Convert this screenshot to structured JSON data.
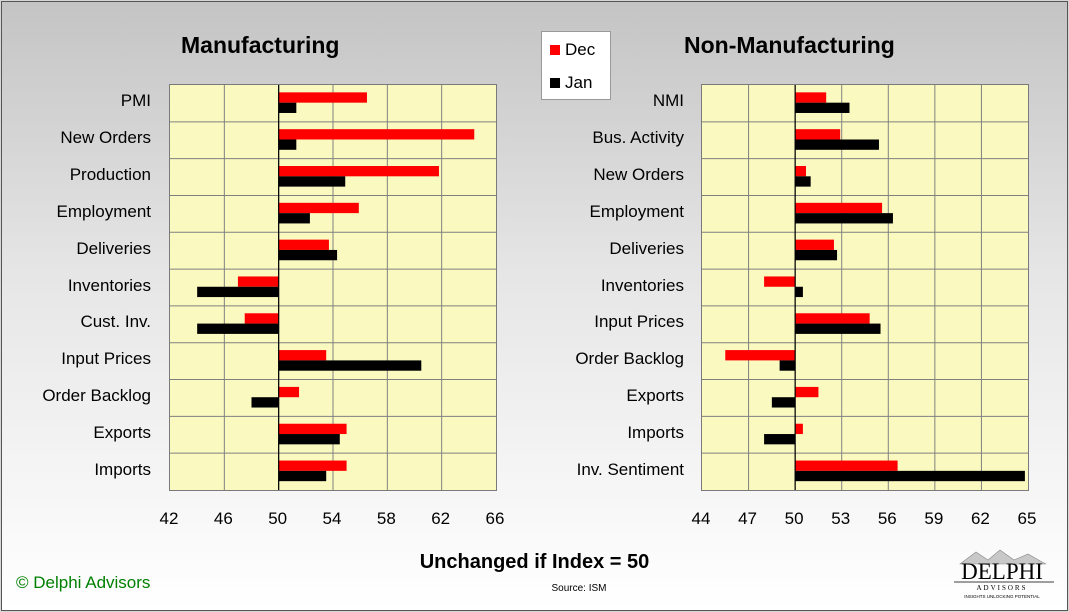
{
  "copyright": "© Delphi Advisors",
  "footer": "Unchanged if Index = 50",
  "source": "Source: ISM",
  "logo": {
    "name": "DELPHI",
    "sub": "ADVISORS",
    "tagline": "INSIGHTS UNLOCKING POTENTIAL"
  },
  "colors": {
    "dec": "#ff0000",
    "jan": "#000000",
    "plot_bg": "#fafac0",
    "grid": "#808080"
  },
  "legend": [
    {
      "name": "Dec",
      "color": "#ff0000"
    },
    {
      "name": "Jan",
      "color": "#000000"
    }
  ],
  "chart_data": [
    {
      "type": "bar",
      "orientation": "horizontal",
      "title": "Manufacturing",
      "baseline": 50,
      "xlim": [
        42,
        66
      ],
      "xticks": [
        42,
        46,
        50,
        54,
        58,
        62,
        66
      ],
      "categories": [
        "PMI",
        "New Orders",
        "Production",
        "Employment",
        "Deliveries",
        "Inventories",
        "Cust. Inv.",
        "Input Prices",
        "Order Backlog",
        "Exports",
        "Imports"
      ],
      "series": [
        {
          "name": "Dec",
          "values": [
            56.5,
            64.4,
            61.8,
            55.9,
            53.7,
            47.0,
            47.5,
            53.5,
            51.5,
            55.0,
            55.0
          ]
        },
        {
          "name": "Jan",
          "values": [
            51.3,
            51.3,
            54.9,
            52.3,
            54.3,
            44.0,
            44.0,
            60.5,
            48.0,
            54.5,
            53.5
          ]
        }
      ]
    },
    {
      "type": "bar",
      "orientation": "horizontal",
      "title": "Non-Manufacturing",
      "baseline": 50,
      "xlim": [
        44,
        65
      ],
      "xticks": [
        44,
        47,
        50,
        53,
        56,
        59,
        62,
        65
      ],
      "categories": [
        "NMI",
        "Bus. Activity",
        "New Orders",
        "Employment",
        "Deliveries",
        "Inventories",
        "Input Prices",
        "Order Backlog",
        "Exports",
        "Imports",
        "Inv. Sentiment"
      ],
      "series": [
        {
          "name": "Dec",
          "values": [
            52.0,
            52.9,
            50.7,
            55.6,
            52.5,
            48.0,
            54.8,
            45.5,
            51.5,
            50.5,
            56.6
          ]
        },
        {
          "name": "Jan",
          "values": [
            53.5,
            55.4,
            51.0,
            56.3,
            52.7,
            50.5,
            55.5,
            49.0,
            48.5,
            48.0,
            64.8
          ]
        }
      ]
    }
  ]
}
